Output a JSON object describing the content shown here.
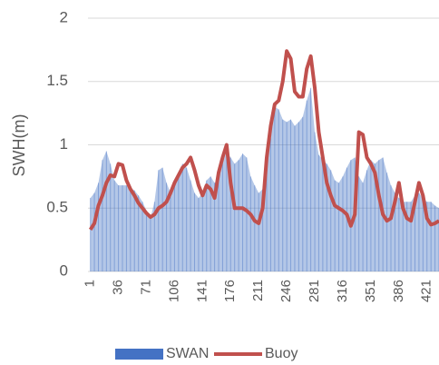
{
  "chart_data": {
    "type": "combo",
    "y_label": "SWH(m)",
    "x": [
      1,
      6,
      11,
      16,
      21,
      26,
      31,
      36,
      41,
      46,
      51,
      56,
      61,
      66,
      71,
      76,
      81,
      86,
      91,
      96,
      101,
      106,
      111,
      116,
      121,
      126,
      131,
      136,
      141,
      146,
      151,
      156,
      161,
      166,
      171,
      176,
      181,
      186,
      191,
      196,
      201,
      206,
      211,
      216,
      221,
      226,
      231,
      236,
      241,
      246,
      251,
      256,
      261,
      266,
      271,
      276,
      281,
      286,
      291,
      296,
      301,
      306,
      311,
      316,
      321,
      326,
      331,
      336,
      341,
      346,
      351,
      356,
      361,
      366,
      371,
      376,
      381,
      386,
      391,
      396,
      401,
      406,
      411,
      416,
      421,
      426,
      431,
      436
    ],
    "series": [
      {
        "name": "SWAN",
        "type": "area",
        "color": "#4472c4",
        "values": [
          0.58,
          0.62,
          0.7,
          0.88,
          0.95,
          0.85,
          0.72,
          0.68,
          0.68,
          0.68,
          0.66,
          0.64,
          0.6,
          0.55,
          0.48,
          0.42,
          0.55,
          0.8,
          0.82,
          0.7,
          0.62,
          0.68,
          0.78,
          0.85,
          0.82,
          0.72,
          0.62,
          0.58,
          0.62,
          0.72,
          0.75,
          0.7,
          0.72,
          0.85,
          0.95,
          0.9,
          0.85,
          0.88,
          0.93,
          0.9,
          0.75,
          0.68,
          0.62,
          0.65,
          0.9,
          1.05,
          1.3,
          1.28,
          1.2,
          1.18,
          1.2,
          1.15,
          1.18,
          1.22,
          1.35,
          1.45,
          1.1,
          0.92,
          0.88,
          0.85,
          0.8,
          0.72,
          0.7,
          0.75,
          0.82,
          0.88,
          0.9,
          0.75,
          0.7,
          0.8,
          0.88,
          0.85,
          0.88,
          0.9,
          0.78,
          0.68,
          0.62,
          0.58,
          0.55,
          0.55,
          0.55,
          0.6,
          0.62,
          0.58,
          0.55,
          0.55,
          0.52,
          0.5
        ]
      },
      {
        "name": "Buoy",
        "type": "line",
        "color": "#c0504d",
        "values": [
          0.33,
          0.38,
          0.52,
          0.6,
          0.7,
          0.76,
          0.75,
          0.85,
          0.84,
          0.72,
          0.65,
          0.6,
          0.54,
          0.5,
          0.46,
          0.43,
          0.45,
          0.5,
          0.52,
          0.55,
          0.62,
          0.7,
          0.76,
          0.82,
          0.85,
          0.9,
          0.8,
          0.68,
          0.6,
          0.68,
          0.65,
          0.58,
          0.78,
          0.9,
          1.0,
          0.7,
          0.5,
          0.5,
          0.5,
          0.48,
          0.45,
          0.4,
          0.38,
          0.5,
          0.9,
          1.15,
          1.32,
          1.35,
          1.5,
          1.74,
          1.68,
          1.42,
          1.38,
          1.38,
          1.6,
          1.7,
          1.45,
          1.1,
          0.9,
          0.7,
          0.6,
          0.52,
          0.5,
          0.48,
          0.45,
          0.36,
          0.45,
          1.1,
          1.08,
          0.9,
          0.85,
          0.78,
          0.6,
          0.45,
          0.4,
          0.42,
          0.55,
          0.7,
          0.5,
          0.42,
          0.4,
          0.55,
          0.7,
          0.6,
          0.42,
          0.37,
          0.38,
          0.4
        ]
      }
    ],
    "xlim": [
      -2,
      436
    ],
    "xticks": [
      1,
      36,
      71,
      106,
      141,
      176,
      211,
      246,
      281,
      316,
      351,
      386,
      421
    ],
    "ylim": [
      0,
      2
    ],
    "yticks": [
      0,
      0.5,
      1,
      1.5,
      2
    ],
    "grid": true,
    "legend": "bottom"
  }
}
